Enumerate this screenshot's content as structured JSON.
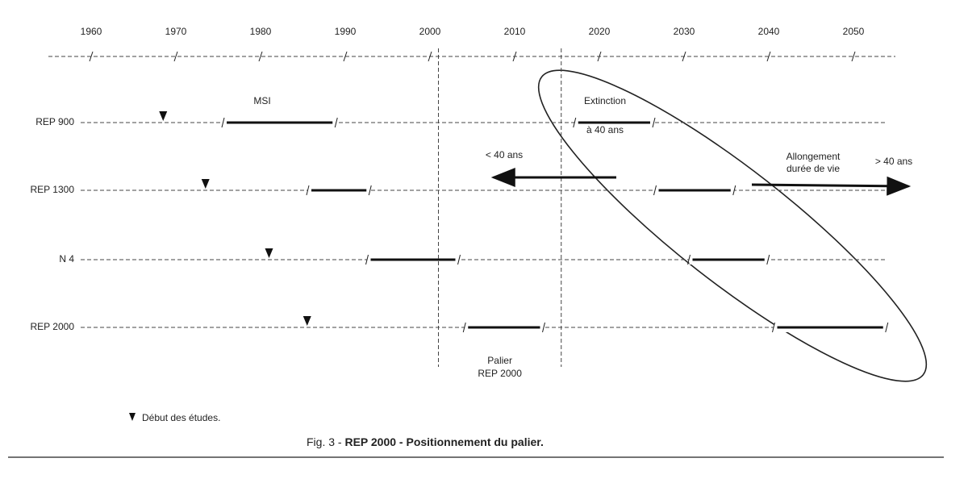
{
  "axis": {
    "years": [
      1960,
      1970,
      1980,
      1990,
      2000,
      2010,
      2020,
      2030,
      2040,
      2050
    ]
  },
  "rows": [
    {
      "label": "REP 900",
      "study_start": 1968.5,
      "spans": [
        [
          1976,
          1988.5
        ],
        [
          2017.5,
          2026
        ]
      ]
    },
    {
      "label": "REP 1300",
      "study_start": 1973.5,
      "spans": [
        [
          1986,
          1992.5
        ],
        [
          2027,
          2035.5
        ]
      ]
    },
    {
      "label": "N 4",
      "study_start": 1981,
      "spans": [
        [
          1993,
          2003
        ],
        [
          2031,
          2039.5
        ]
      ]
    },
    {
      "label": "REP 2000",
      "study_start": 1985.5,
      "spans": [
        [
          2004.5,
          2013
        ],
        [
          2041,
          2053.5
        ]
      ]
    }
  ],
  "annotations": {
    "msi": "MSI",
    "extinction": "Extinction",
    "at_40": "à 40 ans",
    "less_40": "< 40 ans",
    "extension": [
      "Allongement",
      "durée de vie"
    ],
    "more_40": "> 40 ans"
  },
  "arrows": {
    "left": [
      2022,
      2007.5
    ],
    "right": [
      2038,
      2056.5
    ]
  },
  "palier": {
    "label": [
      "Palier",
      "REP 2000"
    ],
    "years": [
      2001,
      2015.5
    ]
  },
  "legend": "Début des études.",
  "caption": {
    "prefix": "Fig. 3 - ",
    "bold": "REP 2000 - Positionnement du palier."
  }
}
